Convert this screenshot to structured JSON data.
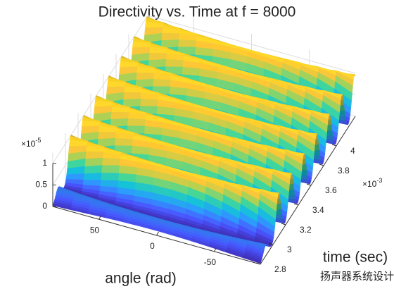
{
  "chart_data": {
    "type": "surface",
    "title": "Directivity vs. Time at f = 8000",
    "xlabel": "angle (rad)",
    "ylabel": "time (sec)",
    "xlim": [
      -90,
      90
    ],
    "xticks": [
      50,
      0,
      -50
    ],
    "ylim": [
      2.8,
      4.3
    ],
    "yticks": [
      2.8,
      3,
      3.2,
      3.4,
      3.6,
      3.8,
      4
    ],
    "y_multiplier": "×10",
    "y_exponent": "-3",
    "zlim": [
      0,
      1
    ],
    "zticks": [
      0,
      0.5,
      1
    ],
    "z_multiplier": "×10",
    "z_exponent": "-5",
    "ridges": {
      "time": [
        2.85,
        3.05,
        3.25,
        3.45,
        3.65,
        3.85,
        4.05,
        4.25
      ],
      "peak": [
        0.25,
        1,
        1,
        1,
        1,
        1,
        1,
        1
      ]
    },
    "colormap": [
      "#3e26a8",
      "#4352f0",
      "#2a8ae8",
      "#13b0c6",
      "#3cc38c",
      "#a6be48",
      "#f2b22e",
      "#f9e41c"
    ],
    "grid": true
  },
  "watermark": "扬声器系统设计与仿真"
}
